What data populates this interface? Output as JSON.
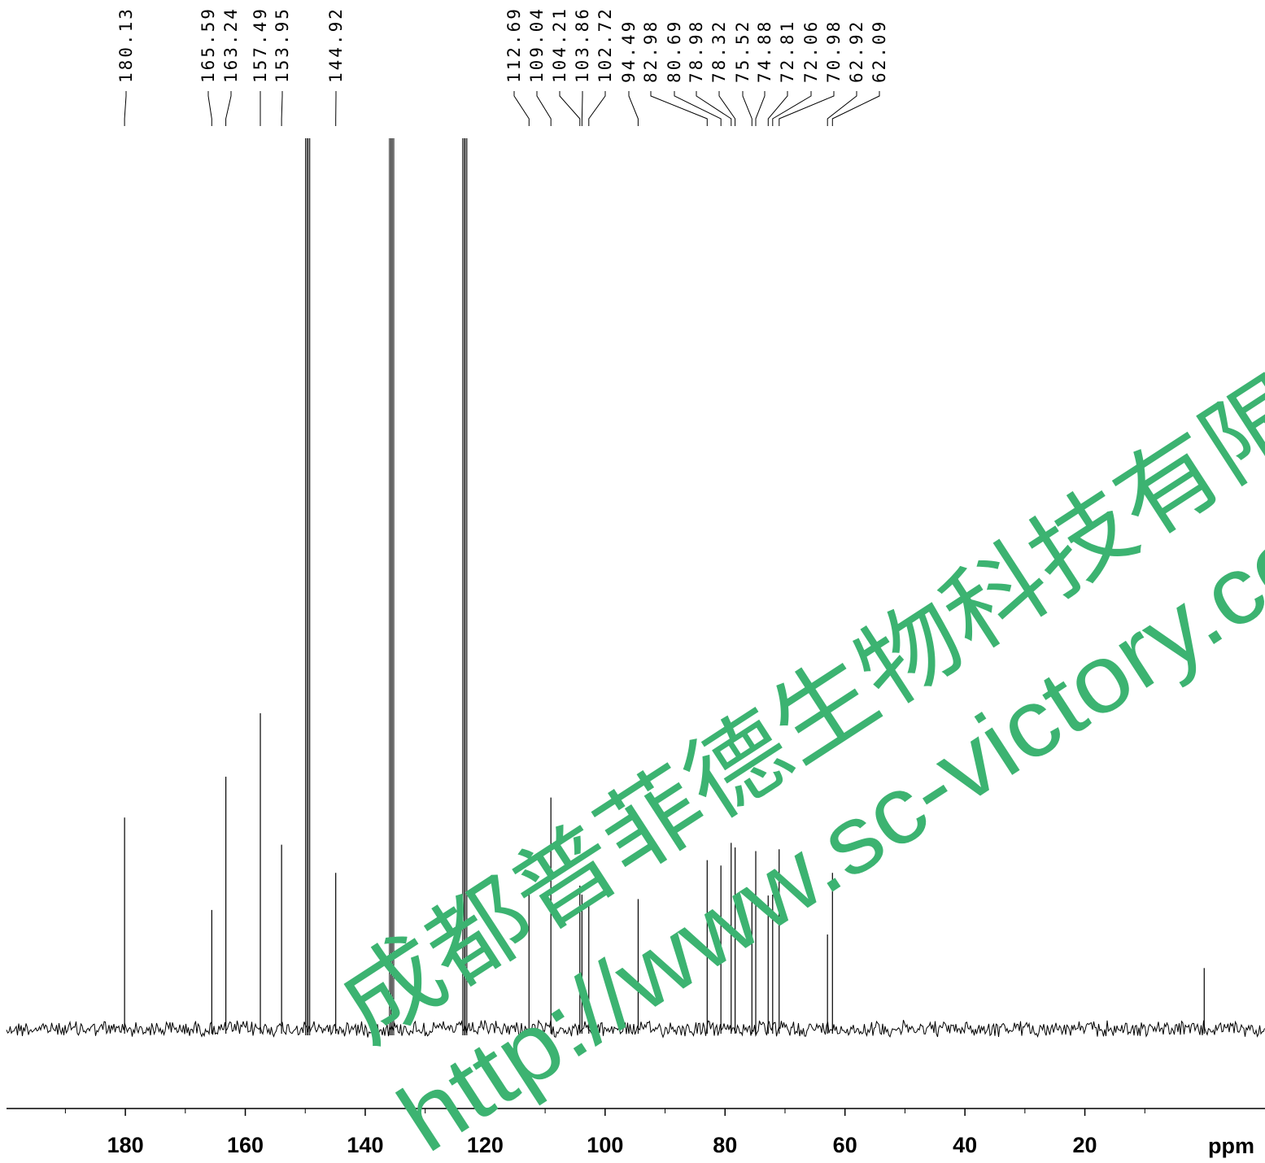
{
  "chart_data": {
    "type": "line",
    "title": "",
    "xlabel": "ppm",
    "ylabel": "",
    "x_axis": {
      "min": 0,
      "max": 200,
      "reversed": true
    },
    "ticks": {
      "major": [
        180,
        160,
        140,
        120,
        100,
        80,
        60,
        40,
        20
      ],
      "major_labels": [
        "180",
        "160",
        "140",
        "120",
        "100",
        "80",
        "60",
        "40",
        "20"
      ],
      "minor": [
        190,
        170,
        150,
        130,
        110,
        90,
        70,
        50,
        30,
        10
      ]
    },
    "peak_labels": [
      "180.13",
      "165.59",
      "163.24",
      "157.49",
      "153.95",
      "144.92",
      "112.69",
      "109.04",
      "104.21",
      "103.86",
      "102.72",
      "94.49",
      "82.98",
      "80.69",
      "78.98",
      "78.32",
      "75.52",
      "74.88",
      "72.81",
      "72.06",
      "70.98",
      "62.92",
      "62.09"
    ],
    "peaks": [
      {
        "ppm": 180.13,
        "height": 0.233
      },
      {
        "ppm": 165.59,
        "height": 0.131
      },
      {
        "ppm": 163.24,
        "height": 0.278
      },
      {
        "ppm": 157.49,
        "height": 0.348
      },
      {
        "ppm": 153.95,
        "height": 0.203
      },
      {
        "ppm": 149.6,
        "height": 1.0,
        "solvent": true
      },
      {
        "ppm": 144.92,
        "height": 0.172
      },
      {
        "ppm": 135.6,
        "height": 1.0,
        "solvent": true
      },
      {
        "ppm": 123.4,
        "height": 1.0,
        "solvent": true
      },
      {
        "ppm": 112.69,
        "height": 0.154
      },
      {
        "ppm": 109.04,
        "height": 0.255
      },
      {
        "ppm": 104.21,
        "height": 0.158
      },
      {
        "ppm": 103.86,
        "height": 0.148
      },
      {
        "ppm": 102.72,
        "height": 0.142
      },
      {
        "ppm": 94.49,
        "height": 0.143
      },
      {
        "ppm": 82.98,
        "height": 0.186
      },
      {
        "ppm": 80.69,
        "height": 0.18
      },
      {
        "ppm": 78.98,
        "height": 0.205
      },
      {
        "ppm": 78.32,
        "height": 0.2
      },
      {
        "ppm": 75.52,
        "height": 0.145
      },
      {
        "ppm": 74.88,
        "height": 0.196
      },
      {
        "ppm": 72.81,
        "height": 0.147
      },
      {
        "ppm": 72.06,
        "height": 0.148
      },
      {
        "ppm": 70.98,
        "height": 0.198
      },
      {
        "ppm": 62.92,
        "height": 0.104
      },
      {
        "ppm": 62.09,
        "height": 0.172
      },
      {
        "ppm": 0.1,
        "height": 0.067
      }
    ],
    "grid": false,
    "legend": "none"
  },
  "watermark": {
    "line1": "成都普菲德生物科技有限",
    "line2": "http://www.sc-victory.co",
    "color": "#3cb371"
  }
}
